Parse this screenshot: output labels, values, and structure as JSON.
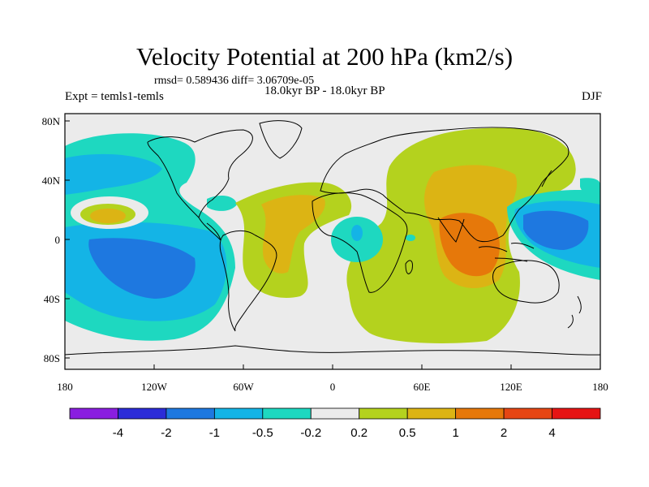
{
  "title": "Velocity Potential at 200 hPa (km2/s)",
  "stats": "rmsd= 0.589436  diff= 3.06709e-05",
  "experiment": "Expt = temls1-temls",
  "period": "18.0kyr BP - 18.0kyr BP",
  "season": "DJF",
  "axes": {
    "x_ticks": [
      "180",
      "120W",
      "60W",
      "0",
      "60E",
      "120E",
      "180"
    ],
    "y_ticks": [
      "80N",
      "40N",
      "0",
      "40S",
      "80S"
    ]
  },
  "colorbar": {
    "colors": [
      "#8a1ee0",
      "#2c2cd8",
      "#1e78e0",
      "#14b4e6",
      "#1ed8c0",
      "#ebebeb",
      "#b4d21e",
      "#dcb414",
      "#e6780a",
      "#e64614",
      "#e61414"
    ],
    "labels": [
      "-4",
      "-2",
      "-1",
      "-0.5",
      "-0.2",
      "0.2",
      "0.5",
      "1",
      "2",
      "4"
    ]
  }
}
